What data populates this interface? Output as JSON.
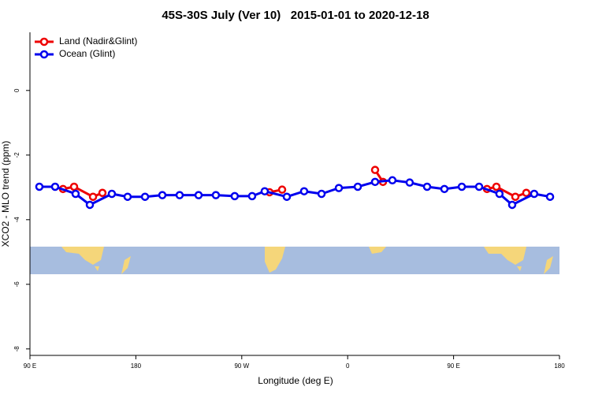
{
  "chart_data": {
    "type": "line",
    "title": "45S-30S July (Ver 10)   2015-01-01 to 2020-12-18",
    "x_label": "Longitude (deg E)",
    "y_label": "XCO2 - MLO trend (ppm)",
    "xlim": [
      90,
      540
    ],
    "xticks": [
      {
        "value": 90,
        "label": "90 E"
      },
      180,
      {
        "value": 270,
        "label": "90 W"
      },
      {
        "value": 360,
        "label": "0"
      },
      {
        "value": 450,
        "label": "90 E"
      },
      {
        "value": 540,
        "label": "180"
      }
    ],
    "ylim": [
      -8.2,
      1.8
    ],
    "yticks": [
      0,
      -2,
      -4,
      -6,
      -8
    ],
    "legend": "top-left",
    "series": [
      {
        "name": "Land (Nadir&Glint)",
        "color": "#ee0000",
        "x": [
          118.1,
          127.5,
          143.6,
          151.6,
          null,
          293.6,
          304.3,
          null,
          383.3,
          390,
          null,
          478.4,
          486.4,
          502.5,
          511.8
        ],
        "values": [
          -3.05,
          -2.98,
          -3.29,
          -3.17,
          null,
          -3.15,
          -3.07,
          null,
          -2.46,
          -2.83,
          null,
          -3.05,
          -2.98,
          -3.29,
          -3.17
        ]
      },
      {
        "name": "Ocean (Glint)",
        "color": "#0000ee",
        "x": [
          98,
          111.4,
          128.8,
          140.9,
          159.6,
          173,
          187.8,
          202.5,
          217.2,
          233.3,
          248,
          264,
          278.8,
          289.5,
          308.3,
          323,
          337.8,
          352.5,
          368.6,
          383.3,
          398,
          412.7,
          427.5,
          442.2,
          457,
          471.7,
          489,
          499.8,
          518.5,
          532
        ],
        "values": [
          -2.98,
          -2.98,
          -3.2,
          -3.54,
          -3.2,
          -3.29,
          -3.29,
          -3.24,
          -3.24,
          -3.24,
          -3.24,
          -3.27,
          -3.27,
          -3.12,
          -3.29,
          -3.12,
          -3.2,
          -3.02,
          -2.98,
          -2.83,
          -2.78,
          -2.85,
          -2.98,
          -3.05,
          -2.98,
          -2.98,
          -3.2,
          -3.54,
          -3.2,
          -3.29
        ]
      }
    ]
  }
}
